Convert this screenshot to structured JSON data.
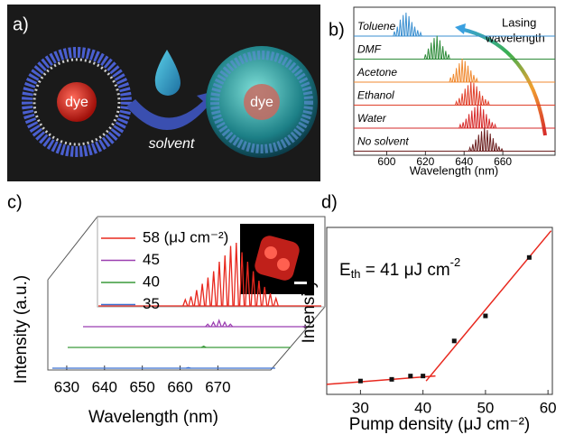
{
  "figure": {
    "panel_labels": [
      "a)",
      "b)",
      "c)",
      "d)"
    ],
    "illustration": {
      "labels": [
        "dye",
        "solvent",
        "dye"
      ]
    }
  },
  "chart_data": [
    {
      "type": "spectra",
      "xlabel": "Wavelength (nm)",
      "xlim": [
        583,
        687
      ],
      "xticks": [
        600,
        620,
        640,
        660
      ],
      "annotation": [
        "Lasing",
        "wavelength"
      ],
      "series": [
        {
          "name": "Toluene",
          "color": "#3a8fd0",
          "x": [
            604,
            605.5,
            607,
            608.5,
            610,
            611.5,
            613,
            614.5,
            616,
            617.5
          ],
          "values": [
            0.2,
            0.4,
            0.7,
            0.9,
            1.0,
            0.85,
            0.6,
            0.4,
            0.25,
            0.15
          ]
        },
        {
          "name": "DMF",
          "color": "#2e8b3a",
          "x": [
            620,
            621.5,
            623,
            624.5,
            626,
            627.5,
            629,
            630.5,
            632
          ],
          "values": [
            0.2,
            0.45,
            0.7,
            0.9,
            1.0,
            0.8,
            0.55,
            0.35,
            0.2
          ]
        },
        {
          "name": "Acetone",
          "color": "#f08a30",
          "x": [
            633,
            634.5,
            636,
            637.5,
            639,
            640.5,
            642,
            643.5,
            645,
            646.5
          ],
          "values": [
            0.2,
            0.35,
            0.6,
            0.8,
            1.0,
            0.9,
            0.7,
            0.5,
            0.3,
            0.15
          ]
        },
        {
          "name": "Ethanol",
          "color": "#e0402a",
          "x": [
            636,
            637.5,
            639,
            640.5,
            642,
            643.5,
            645,
            646.5,
            648,
            649.5,
            651,
            652.5
          ],
          "values": [
            0.15,
            0.3,
            0.5,
            0.7,
            0.85,
            1.0,
            0.95,
            0.8,
            0.6,
            0.4,
            0.25,
            0.15
          ]
        },
        {
          "name": "Water",
          "color": "#d62a2a",
          "x": [
            638,
            639.5,
            641,
            642.5,
            644,
            645.5,
            647,
            648.5,
            650,
            651.5,
            653,
            654.5,
            656
          ],
          "values": [
            0.15,
            0.25,
            0.4,
            0.6,
            0.75,
            0.9,
            1.0,
            0.95,
            0.8,
            0.6,
            0.4,
            0.25,
            0.15
          ]
        },
        {
          "name": "No solvent",
          "color": "#6b1f1f",
          "x": [
            643,
            644.5,
            646,
            647.5,
            649,
            650.5,
            652,
            653.5,
            655,
            656.5,
            658,
            659.5
          ],
          "values": [
            0.15,
            0.3,
            0.5,
            0.7,
            0.85,
            1.0,
            0.9,
            0.75,
            0.55,
            0.35,
            0.2,
            0.1
          ]
        }
      ]
    },
    {
      "type": "waterfall3d",
      "xlabel": "Wavelength (nm)",
      "ylabel": "Intensity (a.u.)",
      "xlim": [
        625,
        684
      ],
      "xticks": [
        630,
        640,
        650,
        660,
        670
      ],
      "series": [
        {
          "name": "58 (μJ cm⁻²)",
          "color": "#e8281e",
          "x": [
            648,
            649.5,
            651,
            652.5,
            654,
            655.5,
            657,
            658.5,
            660,
            661.5,
            663,
            664.5,
            666,
            667.5,
            669,
            670.5,
            672
          ],
          "values": [
            0.1,
            0.15,
            0.25,
            0.35,
            0.45,
            0.55,
            0.7,
            0.8,
            0.95,
            1.0,
            0.85,
            0.7,
            0.55,
            0.4,
            0.3,
            0.2,
            0.12
          ]
        },
        {
          "name": "45",
          "color": "#9b3fb0",
          "x": [
            658,
            659.5,
            661,
            662.5,
            664
          ],
          "values": [
            0.04,
            0.07,
            0.1,
            0.07,
            0.04
          ]
        },
        {
          "name": "40",
          "color": "#3a9a3a",
          "x": [
            661
          ],
          "values": [
            0.02
          ]
        },
        {
          "name": "35",
          "color": "#3b6fd0",
          "x": [
            661
          ],
          "values": [
            0.01
          ]
        }
      ]
    },
    {
      "type": "scatter",
      "xlabel": "Pump density (μJ cm⁻²)",
      "ylabel": "Intensity",
      "xlim": [
        24.6,
        60.7
      ],
      "ylim": [
        0,
        1
      ],
      "xticks": [
        30,
        40,
        50,
        60
      ],
      "x": [
        30,
        35,
        38,
        40,
        45,
        50,
        57
      ],
      "values": [
        0.08,
        0.09,
        0.11,
        0.11,
        0.32,
        0.47,
        0.82
      ],
      "color": "#111111",
      "fit_color": "#e8281e",
      "fits": [
        {
          "x": [
            24.6,
            42
          ],
          "values": [
            0.06,
            0.11
          ]
        },
        {
          "x": [
            40.5,
            60.5
          ],
          "values": [
            0.08,
            0.98
          ]
        }
      ],
      "annotation": {
        "symbol": "E",
        "subscript": "th",
        "text": " = 41 μJ cm",
        "superscript": "-2"
      }
    }
  ]
}
